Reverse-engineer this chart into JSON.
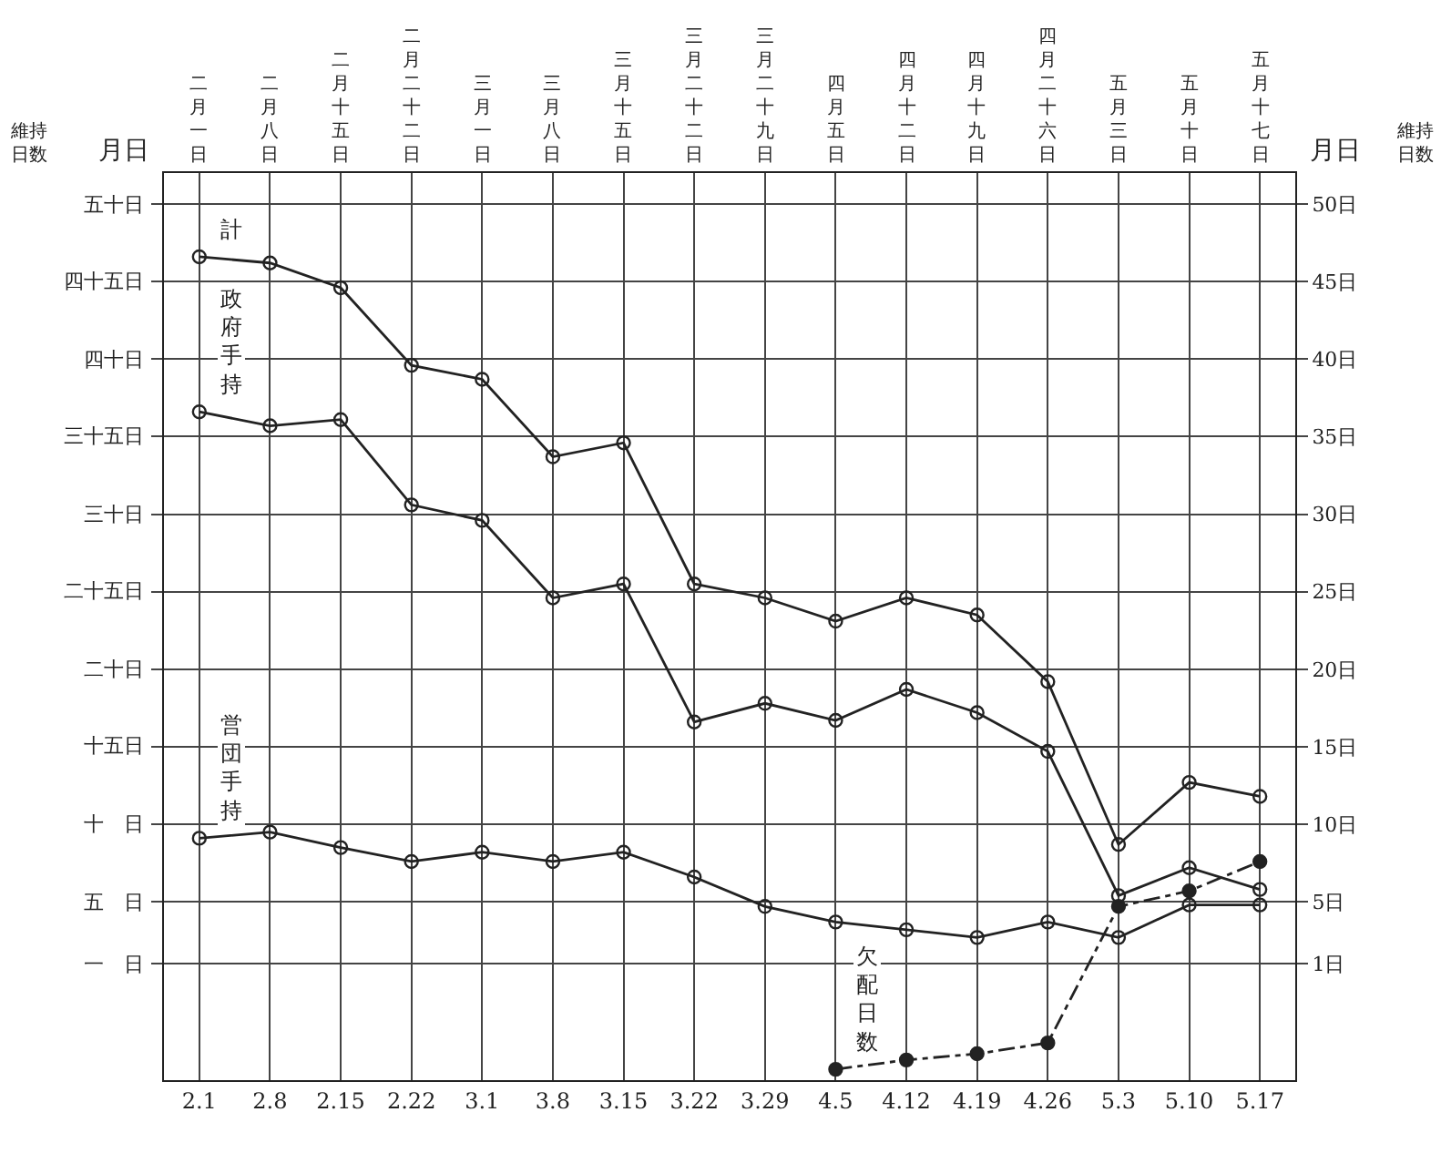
{
  "chart_data": {
    "type": "line",
    "xlabel": "月日",
    "ylabel": "維持日数",
    "categories": [
      "2.1",
      "2.8",
      "2.15",
      "2.22",
      "3.1",
      "3.8",
      "3.15",
      "3.22",
      "3.29",
      "4.5",
      "4.12",
      "4.19",
      "4.26",
      "5.3",
      "5.10",
      "5.17"
    ],
    "annotations": [
      "二月一日",
      "二月八日",
      "二月十五日",
      "二月二十二日",
      "三月一日",
      "三月八日",
      "三月十五日",
      "三月二十二日",
      "三月二十九日",
      "四月五日",
      "四月十二日",
      "四月十九日",
      "四月二十六日",
      "五月三日",
      "五月十日",
      "五月十七日",
      "一　日",
      "五　日",
      "十　日",
      "十五日",
      "二十日",
      "二十五日",
      "三十日",
      "三十五日",
      "四十日",
      "四十五日",
      "五十日",
      "月日",
      "維持日数"
    ],
    "series": [
      {
        "name": "計",
        "color": "#222222",
        "line_style": "solid",
        "values": [
          46.6,
          46.2,
          44.6,
          39.6,
          38.7,
          33.7,
          34.6,
          25.5,
          24.6,
          23.1,
          24.6,
          23.5,
          19.2,
          8.7,
          12.7,
          11.8
        ]
      },
      {
        "name": "政府手持",
        "color": "#222222",
        "line_style": "solid",
        "values": [
          36.6,
          35.7,
          36.1,
          30.6,
          29.6,
          24.6,
          25.5,
          16.6,
          17.8,
          16.7,
          18.7,
          17.2,
          14.7,
          5.4,
          7.2,
          5.8
        ]
      },
      {
        "name": "営団手持",
        "color": "#222222",
        "line_style": "solid",
        "values": [
          9.1,
          9.5,
          8.5,
          7.6,
          8.2,
          7.6,
          8.2,
          6.6,
          4.7,
          3.7,
          3.2,
          2.7,
          3.7,
          2.7,
          4.8,
          4.8
        ]
      },
      {
        "name": "欠配日数",
        "color": "#222222",
        "line_style": "dashed",
        "values": [
          null,
          null,
          null,
          null,
          null,
          null,
          null,
          null,
          null,
          -5.8,
          -5.2,
          -4.8,
          -4.1,
          4.7,
          5.7,
          7.6
        ]
      }
    ],
    "ylim": [
      -6.5,
      52
    ],
    "yticks": [
      {
        "value": 1,
        "label": "1日"
      },
      {
        "value": 5,
        "label": "5日"
      },
      {
        "value": 10,
        "label": "10日"
      },
      {
        "value": 15,
        "label": "15日"
      },
      {
        "value": 20,
        "label": "20日"
      },
      {
        "value": 25,
        "label": "25日"
      },
      {
        "value": 30,
        "label": "30日"
      },
      {
        "value": 35,
        "label": "35日"
      },
      {
        "value": 40,
        "label": "40日"
      },
      {
        "value": 45,
        "label": "45日"
      },
      {
        "value": 50,
        "label": "50日"
      }
    ],
    "marker": "circle",
    "grid": true,
    "legend": false
  }
}
